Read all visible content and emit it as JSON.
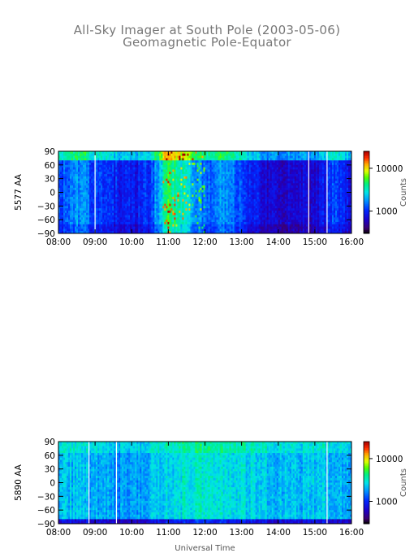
{
  "header": {
    "title": "All-Sky Imager at South Pole (2003-05-06)",
    "subtitle": "Geomagnetic Pole-Equator"
  },
  "chart_data": [
    {
      "type": "heatmap",
      "title": "All-Sky Imager at South Pole (2003-05-06)",
      "subtitle": "Geomagnetic Pole-Equator",
      "ylabel": "5577 AA",
      "xlabel": "",
      "x_range": [
        "08:00",
        "16:00"
      ],
      "x_ticks": [
        "08:00",
        "09:00",
        "10:00",
        "11:00",
        "12:00",
        "13:00",
        "14:00",
        "15:00",
        "16:00"
      ],
      "ylim": [
        -90,
        90
      ],
      "y_ticks": [
        90,
        60,
        30,
        0,
        -30,
        -60,
        -90
      ],
      "colorbar": {
        "label": "Counts",
        "scale": "log",
        "ticks": [
          10000,
          1000
        ],
        "tick_labels": [
          "10000",
          "1000"
        ],
        "colormap": "rainbow"
      },
      "hour_levels": [
        {
          "x": "08:00",
          "level": 0.3
        },
        {
          "x": "08:30",
          "level": 0.38
        },
        {
          "x": "09:00",
          "level": 0.32
        },
        {
          "x": "09:30",
          "level": 0.26
        },
        {
          "x": "10:00",
          "level": 0.22
        },
        {
          "x": "10:30",
          "level": 0.28
        },
        {
          "x": "11:00",
          "level": 0.62
        },
        {
          "x": "11:30",
          "level": 0.5
        },
        {
          "x": "12:00",
          "level": 0.34
        },
        {
          "x": "12:30",
          "level": 0.4
        },
        {
          "x": "13:00",
          "level": 0.3
        },
        {
          "x": "13:30",
          "level": 0.22
        },
        {
          "x": "14:00",
          "level": 0.16
        },
        {
          "x": "14:30",
          "level": 0.2
        },
        {
          "x": "15:00",
          "level": 0.18
        },
        {
          "x": "15:30",
          "level": 0.3
        },
        {
          "x": "16:00",
          "level": 0.2
        }
      ],
      "data_gaps": [
        "09:00",
        "14:50",
        "15:20"
      ]
    },
    {
      "type": "heatmap",
      "ylabel": "5890 AA",
      "xlabel": "Universal Time",
      "x_range": [
        "08:00",
        "16:00"
      ],
      "x_ticks": [
        "08:00",
        "09:00",
        "10:00",
        "11:00",
        "12:00",
        "13:00",
        "14:00",
        "15:00",
        "16:00"
      ],
      "ylim": [
        -90,
        90
      ],
      "y_ticks": [
        90,
        60,
        30,
        0,
        -30,
        -60,
        -90
      ],
      "colorbar": {
        "label": "Counts",
        "scale": "log",
        "ticks": [
          10000,
          1000
        ],
        "tick_labels": [
          "10000",
          "1000"
        ],
        "colormap": "rainbow"
      },
      "hour_levels": [
        {
          "x": "08:00",
          "level": 0.44
        },
        {
          "x": "08:30",
          "level": 0.46
        },
        {
          "x": "09:00",
          "level": 0.42
        },
        {
          "x": "09:30",
          "level": 0.4
        },
        {
          "x": "10:00",
          "level": 0.38
        },
        {
          "x": "10:30",
          "level": 0.44
        },
        {
          "x": "11:00",
          "level": 0.5
        },
        {
          "x": "11:30",
          "level": 0.52
        },
        {
          "x": "12:00",
          "level": 0.52
        },
        {
          "x": "12:30",
          "level": 0.5
        },
        {
          "x": "13:00",
          "level": 0.5
        },
        {
          "x": "13:30",
          "level": 0.46
        },
        {
          "x": "14:00",
          "level": 0.44
        },
        {
          "x": "14:30",
          "level": 0.44
        },
        {
          "x": "15:00",
          "level": 0.46
        },
        {
          "x": "15:30",
          "level": 0.44
        },
        {
          "x": "16:00",
          "level": 0.44
        }
      ],
      "data_gaps": [
        "08:50",
        "09:35",
        "15:20"
      ]
    }
  ]
}
